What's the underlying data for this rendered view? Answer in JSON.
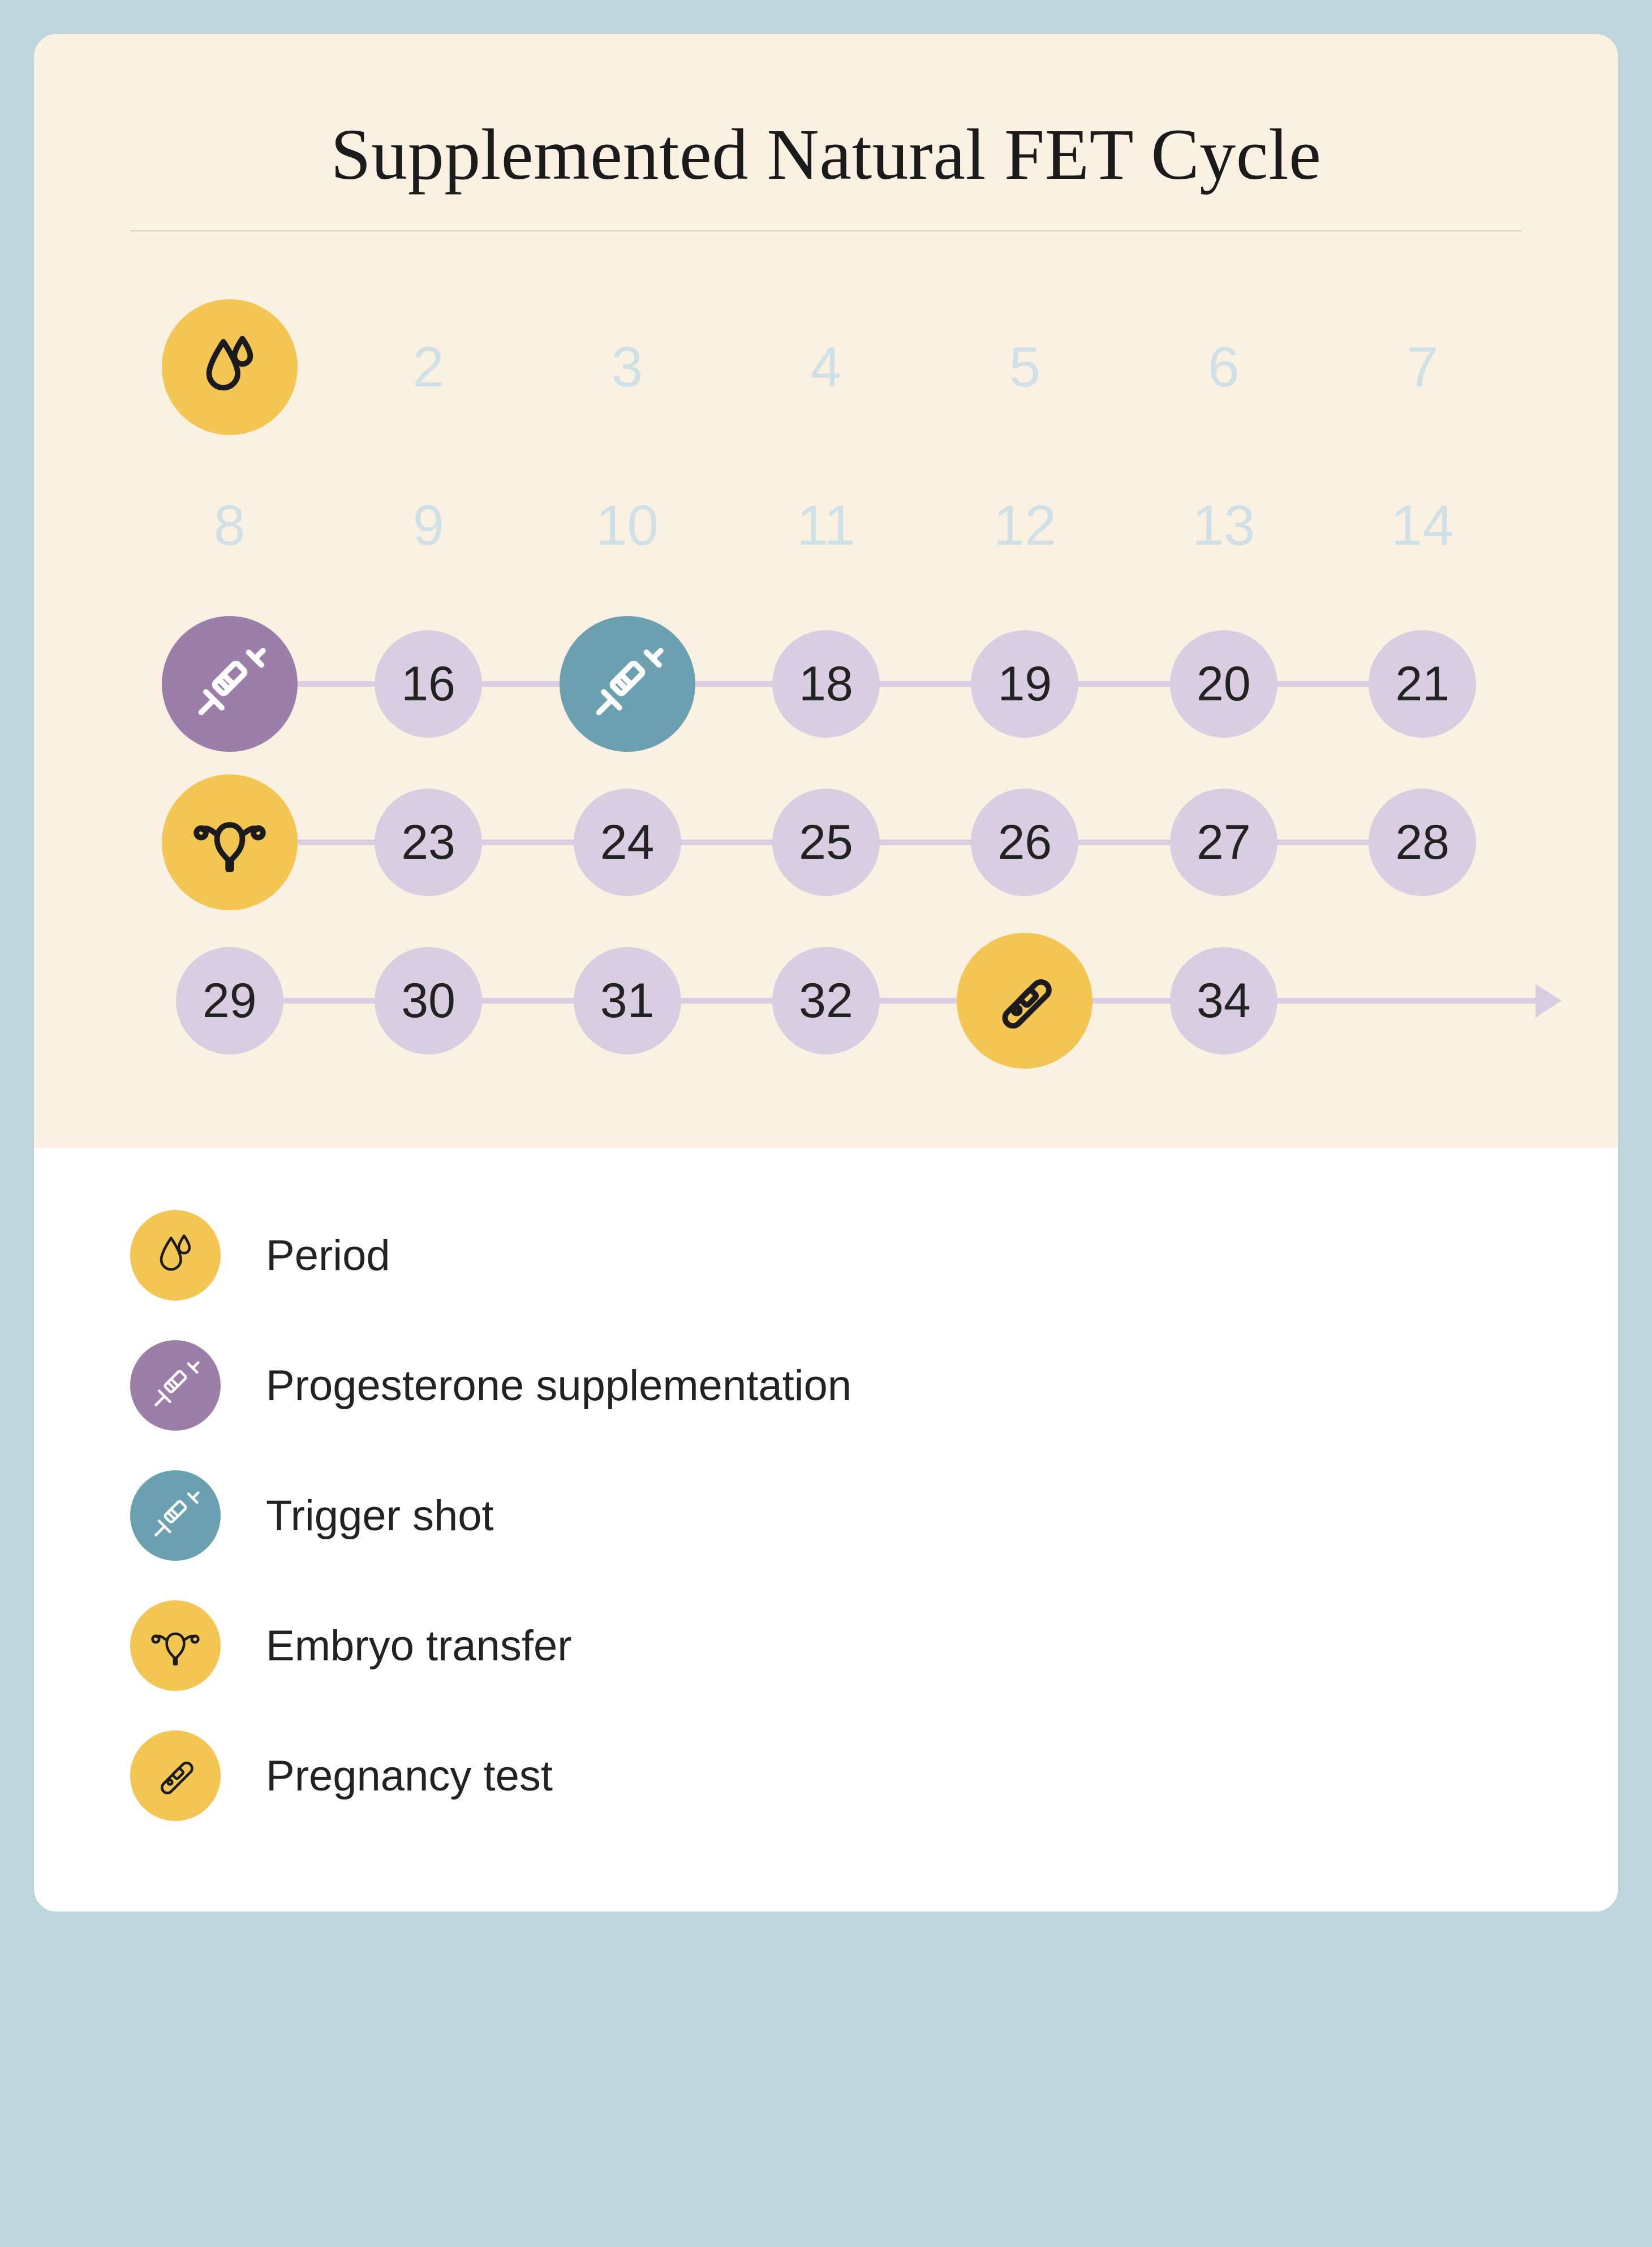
{
  "title": {
    "text": "Supplemented Natural FET Cycle",
    "fontsize": 128,
    "color": "#1b1b1b"
  },
  "colors": {
    "page_bg": "#bfd5dc",
    "card_bg": "#faf1e3",
    "legend_bg": "#ffffff",
    "hr": "#d9cfbf",
    "faded_day": "#cfe0e6",
    "lavender": "#d9cee1",
    "connector": "#d9cee1",
    "yellow": "#f3c552",
    "purple": "#9c7fa8",
    "teal": "#6aa0b0",
    "icon_dark": "#1b1b1b",
    "icon_light": "#ffffff"
  },
  "calendar": {
    "columns": 7,
    "rows": [
      {
        "connected": false,
        "cells": [
          {
            "type": "icon",
            "icon": "drops",
            "bg": "yellow",
            "stroke": "icon_dark",
            "size": "big"
          },
          {
            "type": "faded",
            "label": "2"
          },
          {
            "type": "faded",
            "label": "3"
          },
          {
            "type": "faded",
            "label": "4"
          },
          {
            "type": "faded",
            "label": "5"
          },
          {
            "type": "faded",
            "label": "6"
          },
          {
            "type": "faded",
            "label": "7"
          }
        ]
      },
      {
        "connected": false,
        "cells": [
          {
            "type": "faded",
            "label": "8"
          },
          {
            "type": "faded",
            "label": "9"
          },
          {
            "type": "faded",
            "label": "10"
          },
          {
            "type": "faded",
            "label": "11"
          },
          {
            "type": "faded",
            "label": "12"
          },
          {
            "type": "faded",
            "label": "13"
          },
          {
            "type": "faded",
            "label": "14"
          }
        ]
      },
      {
        "connected": true,
        "cells": [
          {
            "type": "icon",
            "icon": "syringe",
            "bg": "purple",
            "stroke": "icon_light",
            "size": "big"
          },
          {
            "type": "num",
            "label": "16",
            "bg": "lavender"
          },
          {
            "type": "icon",
            "icon": "syringe",
            "bg": "teal",
            "stroke": "icon_light",
            "size": "big"
          },
          {
            "type": "num",
            "label": "18",
            "bg": "lavender"
          },
          {
            "type": "num",
            "label": "19",
            "bg": "lavender"
          },
          {
            "type": "num",
            "label": "20",
            "bg": "lavender"
          },
          {
            "type": "num",
            "label": "21",
            "bg": "lavender"
          }
        ]
      },
      {
        "connected": true,
        "cells": [
          {
            "type": "icon",
            "icon": "uterus",
            "bg": "yellow",
            "stroke": "icon_dark",
            "size": "big"
          },
          {
            "type": "num",
            "label": "23",
            "bg": "lavender"
          },
          {
            "type": "num",
            "label": "24",
            "bg": "lavender"
          },
          {
            "type": "num",
            "label": "25",
            "bg": "lavender"
          },
          {
            "type": "num",
            "label": "26",
            "bg": "lavender"
          },
          {
            "type": "num",
            "label": "27",
            "bg": "lavender"
          },
          {
            "type": "num",
            "label": "28",
            "bg": "lavender"
          }
        ]
      },
      {
        "connected": true,
        "arrow_end": true,
        "cells": [
          {
            "type": "num",
            "label": "29",
            "bg": "lavender"
          },
          {
            "type": "num",
            "label": "30",
            "bg": "lavender"
          },
          {
            "type": "num",
            "label": "31",
            "bg": "lavender"
          },
          {
            "type": "num",
            "label": "32",
            "bg": "lavender"
          },
          {
            "type": "icon",
            "icon": "test",
            "bg": "yellow",
            "stroke": "icon_dark",
            "size": "big"
          },
          {
            "type": "num",
            "label": "34",
            "bg": "lavender"
          },
          {
            "type": "arrow"
          }
        ]
      }
    ]
  },
  "legend": [
    {
      "icon": "drops",
      "bg": "yellow",
      "stroke": "icon_dark",
      "label": "Period"
    },
    {
      "icon": "syringe",
      "bg": "purple",
      "stroke": "icon_light",
      "label": "Progesterone supplementation"
    },
    {
      "icon": "syringe",
      "bg": "teal",
      "stroke": "icon_light",
      "label": "Trigger shot"
    },
    {
      "icon": "uterus",
      "bg": "yellow",
      "stroke": "icon_dark",
      "label": "Embryo transfer"
    },
    {
      "icon": "test",
      "bg": "yellow",
      "stroke": "icon_dark",
      "label": "Pregnancy test"
    }
  ]
}
